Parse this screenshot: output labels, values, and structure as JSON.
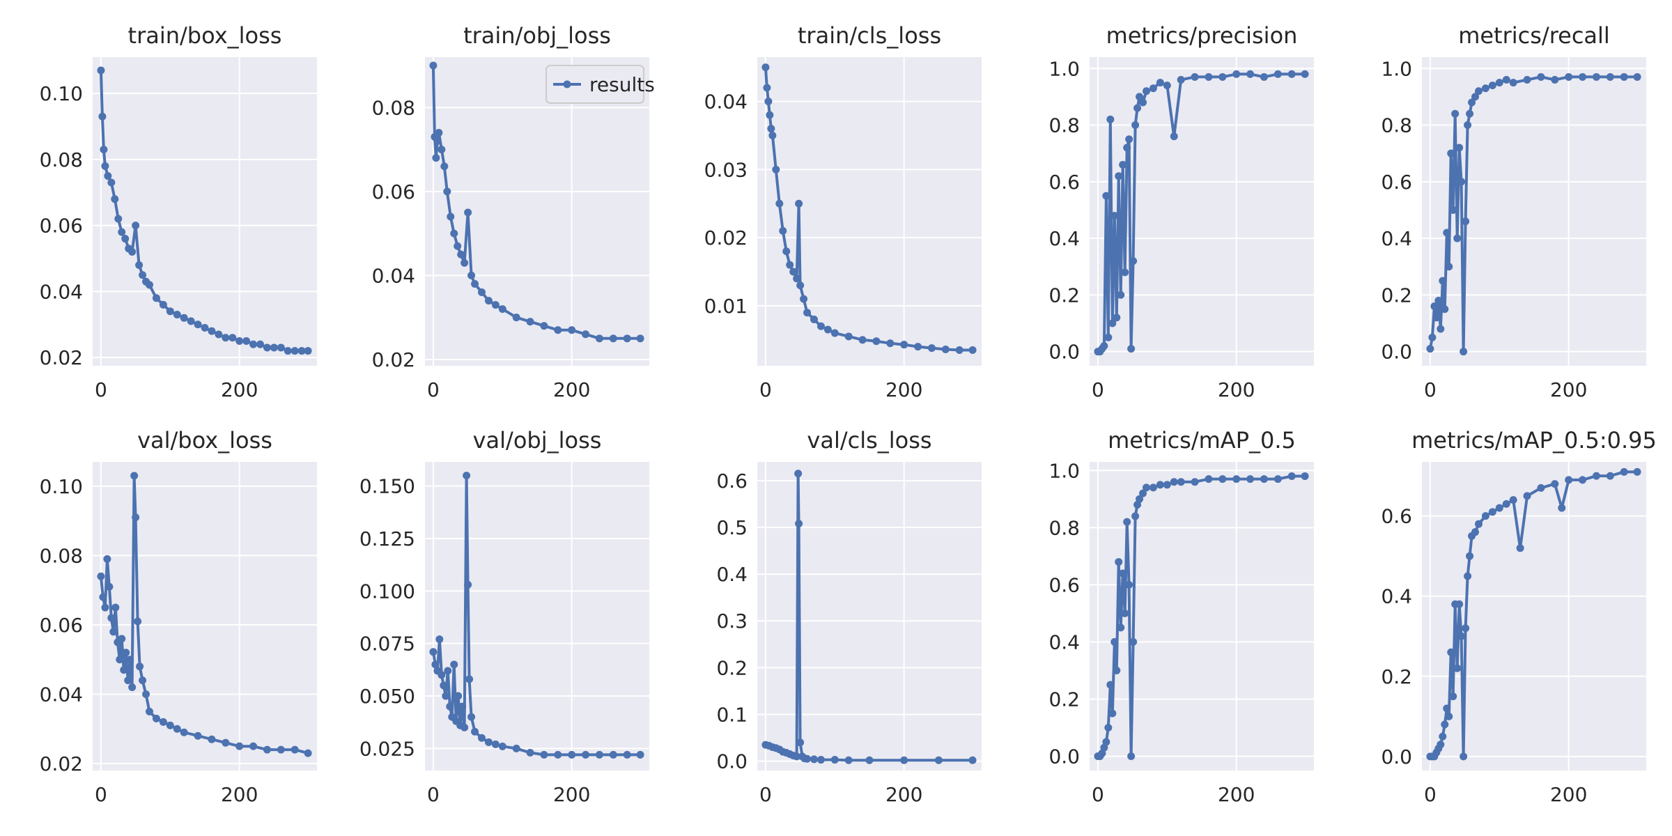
{
  "colors": {
    "panel_bg": "#eaeaf2",
    "grid": "#ffffff",
    "line": "#4c72b0",
    "text": "#262626"
  },
  "legend": {
    "label": "results",
    "panel": "train/obj_loss",
    "position": "top-right"
  },
  "chart_data": [
    {
      "type": "line",
      "title": "train/box_loss",
      "xlim": [
        -12,
        312
      ],
      "ylim": [
        0.0175,
        0.111
      ],
      "xticks": [
        0,
        200
      ],
      "yticks": [
        0.02,
        0.04,
        0.06,
        0.08,
        0.1
      ],
      "xlabels": [
        "0",
        "200"
      ],
      "ylabels": [
        "0.02",
        "0.04",
        "0.06",
        "0.08",
        "0.10"
      ],
      "x": [
        0,
        2,
        4,
        6,
        10,
        15,
        20,
        25,
        30,
        35,
        40,
        45,
        50,
        55,
        60,
        65,
        70,
        80,
        90,
        100,
        110,
        120,
        130,
        140,
        150,
        160,
        170,
        180,
        190,
        200,
        210,
        220,
        230,
        240,
        250,
        260,
        270,
        280,
        290,
        299
      ],
      "y": [
        0.107,
        0.093,
        0.083,
        0.078,
        0.075,
        0.073,
        0.068,
        0.062,
        0.058,
        0.056,
        0.053,
        0.052,
        0.06,
        0.048,
        0.045,
        0.043,
        0.042,
        0.038,
        0.036,
        0.034,
        0.033,
        0.032,
        0.031,
        0.03,
        0.029,
        0.028,
        0.027,
        0.026,
        0.026,
        0.025,
        0.025,
        0.024,
        0.024,
        0.023,
        0.023,
        0.023,
        0.022,
        0.022,
        0.022,
        0.022
      ]
    },
    {
      "type": "line",
      "title": "train/obj_loss",
      "xlim": [
        -12,
        312
      ],
      "ylim": [
        0.0185,
        0.092
      ],
      "xticks": [
        0,
        200
      ],
      "yticks": [
        0.02,
        0.04,
        0.06,
        0.08
      ],
      "xlabels": [
        "0",
        "200"
      ],
      "ylabels": [
        "0.02",
        "0.04",
        "0.06",
        "0.08"
      ],
      "x": [
        0,
        2,
        4,
        6,
        8,
        12,
        16,
        20,
        25,
        30,
        35,
        40,
        45,
        50,
        55,
        60,
        70,
        80,
        90,
        100,
        120,
        140,
        160,
        180,
        200,
        220,
        240,
        260,
        280,
        299
      ],
      "y": [
        0.09,
        0.073,
        0.068,
        0.072,
        0.074,
        0.07,
        0.066,
        0.06,
        0.054,
        0.05,
        0.047,
        0.045,
        0.043,
        0.055,
        0.04,
        0.038,
        0.036,
        0.034,
        0.033,
        0.032,
        0.03,
        0.029,
        0.028,
        0.027,
        0.027,
        0.026,
        0.025,
        0.025,
        0.025,
        0.025
      ]
    },
    {
      "type": "line",
      "title": "train/cls_loss",
      "xlim": [
        -12,
        312
      ],
      "ylim": [
        0.0012,
        0.0465
      ],
      "xticks": [
        0,
        200
      ],
      "yticks": [
        0.01,
        0.02,
        0.03,
        0.04
      ],
      "xlabels": [
        "0",
        "200"
      ],
      "ylabels": [
        "0.01",
        "0.02",
        "0.03",
        "0.04"
      ],
      "x": [
        0,
        2,
        4,
        6,
        8,
        10,
        15,
        20,
        25,
        30,
        35,
        40,
        45,
        48,
        50,
        55,
        60,
        70,
        80,
        90,
        100,
        120,
        140,
        160,
        180,
        200,
        220,
        240,
        260,
        280,
        299
      ],
      "y": [
        0.045,
        0.042,
        0.04,
        0.038,
        0.036,
        0.035,
        0.03,
        0.025,
        0.021,
        0.018,
        0.016,
        0.015,
        0.014,
        0.025,
        0.013,
        0.011,
        0.009,
        0.008,
        0.007,
        0.0065,
        0.006,
        0.0055,
        0.005,
        0.0048,
        0.0045,
        0.0043,
        0.004,
        0.0038,
        0.0036,
        0.0035,
        0.0035
      ]
    },
    {
      "type": "line",
      "title": "metrics/precision",
      "xlim": [
        -12,
        312
      ],
      "ylim": [
        -0.05,
        1.04
      ],
      "xticks": [
        0,
        200
      ],
      "yticks": [
        0.0,
        0.2,
        0.4,
        0.6,
        0.8,
        1.0
      ],
      "xlabels": [
        "0",
        "200"
      ],
      "ylabels": [
        "0.0",
        "0.2",
        "0.4",
        "0.6",
        "0.8",
        "1.0"
      ],
      "x": [
        0,
        3,
        6,
        9,
        12,
        15,
        18,
        21,
        24,
        27,
        30,
        33,
        36,
        39,
        42,
        45,
        48,
        51,
        54,
        57,
        60,
        65,
        70,
        80,
        90,
        100,
        110,
        120,
        140,
        160,
        180,
        200,
        220,
        240,
        260,
        280,
        299
      ],
      "y": [
        0.0,
        0.0,
        0.01,
        0.02,
        0.55,
        0.05,
        0.82,
        0.1,
        0.48,
        0.12,
        0.62,
        0.2,
        0.66,
        0.28,
        0.72,
        0.75,
        0.01,
        0.32,
        0.8,
        0.86,
        0.9,
        0.88,
        0.92,
        0.93,
        0.95,
        0.94,
        0.76,
        0.96,
        0.97,
        0.97,
        0.97,
        0.98,
        0.98,
        0.97,
        0.98,
        0.98,
        0.98
      ]
    },
    {
      "type": "line",
      "title": "metrics/recall",
      "xlim": [
        -12,
        312
      ],
      "ylim": [
        -0.05,
        1.04
      ],
      "xticks": [
        0,
        200
      ],
      "yticks": [
        0.0,
        0.2,
        0.4,
        0.6,
        0.8,
        1.0
      ],
      "xlabels": [
        "0",
        "200"
      ],
      "ylabels": [
        "0.0",
        "0.2",
        "0.4",
        "0.6",
        "0.8",
        "1.0"
      ],
      "x": [
        0,
        3,
        6,
        9,
        12,
        15,
        18,
        21,
        24,
        27,
        30,
        33,
        36,
        39,
        42,
        45,
        48,
        51,
        54,
        57,
        60,
        65,
        70,
        80,
        90,
        100,
        110,
        120,
        140,
        160,
        180,
        200,
        220,
        240,
        260,
        280,
        299
      ],
      "y": [
        0.01,
        0.05,
        0.16,
        0.12,
        0.18,
        0.08,
        0.25,
        0.15,
        0.42,
        0.3,
        0.7,
        0.5,
        0.84,
        0.4,
        0.72,
        0.6,
        0.0,
        0.46,
        0.8,
        0.84,
        0.88,
        0.9,
        0.92,
        0.93,
        0.94,
        0.95,
        0.96,
        0.95,
        0.96,
        0.97,
        0.96,
        0.97,
        0.97,
        0.97,
        0.97,
        0.97,
        0.97
      ]
    },
    {
      "type": "line",
      "title": "val/box_loss",
      "xlim": [
        -12,
        312
      ],
      "ylim": [
        0.018,
        0.107
      ],
      "xticks": [
        0,
        200
      ],
      "yticks": [
        0.02,
        0.04,
        0.06,
        0.08,
        0.1
      ],
      "xlabels": [
        "0",
        "200"
      ],
      "ylabels": [
        "0.02",
        "0.04",
        "0.06",
        "0.08",
        "0.10"
      ],
      "x": [
        0,
        3,
        6,
        9,
        12,
        15,
        18,
        21,
        24,
        27,
        30,
        33,
        36,
        39,
        42,
        45,
        48,
        50,
        53,
        56,
        60,
        65,
        70,
        80,
        90,
        100,
        110,
        120,
        140,
        160,
        180,
        200,
        220,
        240,
        260,
        280,
        299
      ],
      "y": [
        0.074,
        0.068,
        0.065,
        0.079,
        0.071,
        0.062,
        0.058,
        0.065,
        0.055,
        0.05,
        0.056,
        0.047,
        0.052,
        0.044,
        0.05,
        0.042,
        0.103,
        0.091,
        0.061,
        0.048,
        0.044,
        0.04,
        0.035,
        0.033,
        0.032,
        0.031,
        0.03,
        0.029,
        0.028,
        0.027,
        0.026,
        0.025,
        0.025,
        0.024,
        0.024,
        0.024,
        0.023
      ]
    },
    {
      "type": "line",
      "title": "val/obj_loss",
      "xlim": [
        -12,
        312
      ],
      "ylim": [
        0.0145,
        0.1615
      ],
      "xticks": [
        0,
        200
      ],
      "yticks": [
        0.025,
        0.05,
        0.075,
        0.1,
        0.125,
        0.15
      ],
      "xlabels": [
        "0",
        "200"
      ],
      "ylabels": [
        "0.025",
        "0.050",
        "0.075",
        "0.100",
        "0.125",
        "0.150"
      ],
      "x": [
        0,
        3,
        6,
        9,
        12,
        15,
        18,
        21,
        24,
        27,
        30,
        33,
        36,
        39,
        42,
        45,
        48,
        50,
        52,
        55,
        60,
        70,
        80,
        90,
        100,
        120,
        140,
        160,
        180,
        200,
        220,
        240,
        260,
        280,
        299
      ],
      "y": [
        0.071,
        0.065,
        0.062,
        0.077,
        0.06,
        0.055,
        0.05,
        0.062,
        0.045,
        0.04,
        0.065,
        0.038,
        0.05,
        0.036,
        0.045,
        0.035,
        0.155,
        0.103,
        0.058,
        0.04,
        0.033,
        0.03,
        0.028,
        0.027,
        0.026,
        0.025,
        0.023,
        0.022,
        0.022,
        0.022,
        0.022,
        0.022,
        0.022,
        0.022,
        0.022
      ]
    },
    {
      "type": "line",
      "title": "val/cls_loss",
      "xlim": [
        -12,
        312
      ],
      "ylim": [
        -0.02,
        0.64
      ],
      "xticks": [
        0,
        200
      ],
      "yticks": [
        0.0,
        0.1,
        0.2,
        0.3,
        0.4,
        0.5,
        0.6
      ],
      "xlabels": [
        "0",
        "200"
      ],
      "ylabels": [
        "0.0",
        "0.1",
        "0.2",
        "0.3",
        "0.4",
        "0.5",
        "0.6"
      ],
      "x": [
        0,
        5,
        10,
        15,
        20,
        25,
        30,
        35,
        40,
        45,
        47,
        48,
        50,
        53,
        56,
        60,
        70,
        80,
        100,
        120,
        150,
        200,
        250,
        299
      ],
      "y": [
        0.035,
        0.033,
        0.03,
        0.028,
        0.025,
        0.02,
        0.018,
        0.015,
        0.012,
        0.01,
        0.615,
        0.508,
        0.04,
        0.01,
        0.006,
        0.005,
        0.004,
        0.003,
        0.003,
        0.002,
        0.002,
        0.002,
        0.002,
        0.002
      ]
    },
    {
      "type": "line",
      "title": "metrics/mAP_0.5",
      "xlim": [
        -12,
        312
      ],
      "ylim": [
        -0.05,
        1.03
      ],
      "xticks": [
        0,
        200
      ],
      "yticks": [
        0.0,
        0.2,
        0.4,
        0.6,
        0.8,
        1.0
      ],
      "xlabels": [
        "0",
        "200"
      ],
      "ylabels": [
        "0.0",
        "0.2",
        "0.4",
        "0.6",
        "0.8",
        "1.0"
      ],
      "x": [
        0,
        3,
        6,
        9,
        12,
        15,
        18,
        21,
        24,
        27,
        30,
        33,
        36,
        39,
        42,
        45,
        48,
        51,
        54,
        57,
        60,
        65,
        70,
        80,
        90,
        100,
        110,
        120,
        140,
        160,
        180,
        200,
        220,
        240,
        260,
        280,
        299
      ],
      "y": [
        0.0,
        0.0,
        0.01,
        0.03,
        0.05,
        0.1,
        0.25,
        0.15,
        0.4,
        0.3,
        0.68,
        0.45,
        0.64,
        0.5,
        0.82,
        0.6,
        0.0,
        0.4,
        0.84,
        0.88,
        0.9,
        0.92,
        0.94,
        0.94,
        0.95,
        0.95,
        0.96,
        0.96,
        0.96,
        0.97,
        0.97,
        0.97,
        0.97,
        0.97,
        0.97,
        0.98,
        0.98
      ]
    },
    {
      "type": "line",
      "title": "metrics/mAP_0.5:0.95",
      "xlim": [
        -12,
        312
      ],
      "ylim": [
        -0.035,
        0.735
      ],
      "xticks": [
        0,
        200
      ],
      "yticks": [
        0.0,
        0.2,
        0.4,
        0.6
      ],
      "xlabels": [
        "0",
        "200"
      ],
      "ylabels": [
        "0.0",
        "0.2",
        "0.4",
        "0.6"
      ],
      "x": [
        0,
        3,
        6,
        9,
        12,
        15,
        18,
        21,
        24,
        27,
        30,
        33,
        36,
        39,
        42,
        45,
        48,
        51,
        54,
        57,
        60,
        65,
        70,
        80,
        90,
        100,
        110,
        120,
        130,
        140,
        160,
        180,
        190,
        200,
        220,
        240,
        260,
        280,
        299
      ],
      "y": [
        0.0,
        0.0,
        0.0,
        0.01,
        0.02,
        0.03,
        0.05,
        0.08,
        0.12,
        0.1,
        0.26,
        0.15,
        0.38,
        0.22,
        0.38,
        0.3,
        0.0,
        0.32,
        0.45,
        0.5,
        0.55,
        0.56,
        0.58,
        0.6,
        0.61,
        0.62,
        0.63,
        0.64,
        0.52,
        0.65,
        0.67,
        0.68,
        0.62,
        0.69,
        0.69,
        0.7,
        0.7,
        0.71,
        0.71
      ]
    }
  ]
}
